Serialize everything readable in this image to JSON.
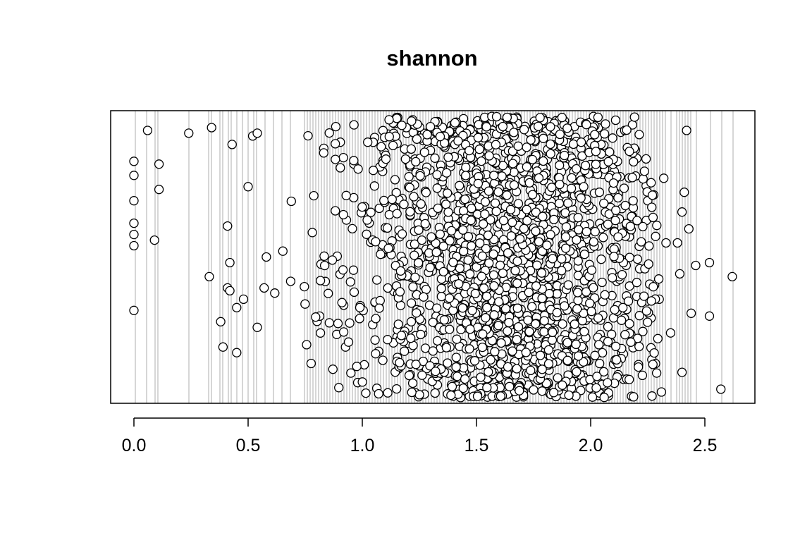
{
  "chart_data": {
    "type": "scatter",
    "title": "shannon",
    "xlabel": "",
    "ylabel": "",
    "xlim": [
      -0.1,
      2.72
    ],
    "x_ticks": [
      0.0,
      0.5,
      1.0,
      1.5,
      2.0,
      2.5
    ],
    "x_tick_labels": [
      "0.0",
      "0.5",
      "1.0",
      "1.5",
      "2.0",
      "2.5"
    ],
    "y_axis": "jittered (no scale shown)",
    "grid": "vertical lines at each observed x value",
    "colors": {
      "grid": "#c0c0c0",
      "point_fill": "#ffffff",
      "point_stroke": "#000000",
      "frame": "#000000"
    },
    "series": [
      {
        "note": "explicit outlying points (x, jitter position 0-1 from bottom)",
        "points": [
          [
            0.0,
            0.84
          ],
          [
            0.0,
            0.79
          ],
          [
            0.0,
            0.7
          ],
          [
            0.0,
            0.62
          ],
          [
            0.0,
            0.58
          ],
          [
            0.0,
            0.54
          ],
          [
            0.0,
            0.31
          ],
          [
            0.06,
            0.95
          ],
          [
            0.09,
            0.56
          ],
          [
            0.11,
            0.83
          ],
          [
            0.11,
            0.74
          ],
          [
            0.24,
            0.94
          ],
          [
            0.34,
            0.96
          ],
          [
            0.33,
            0.43
          ],
          [
            0.38,
            0.27
          ],
          [
            0.39,
            0.18
          ],
          [
            0.41,
            0.61
          ],
          [
            0.41,
            0.39
          ],
          [
            0.42,
            0.38
          ],
          [
            0.42,
            0.48
          ],
          [
            0.43,
            0.9
          ],
          [
            0.45,
            0.32
          ],
          [
            0.45,
            0.16
          ],
          [
            0.48,
            0.35
          ],
          [
            0.5,
            0.75
          ],
          [
            0.52,
            0.93
          ],
          [
            0.54,
            0.94
          ],
          [
            0.54,
            0.25
          ],
          [
            0.57,
            0.39
          ],
          [
            0.58,
            0.5
          ],
          [
            2.25,
            0.7
          ],
          [
            2.28,
            0.4
          ],
          [
            2.3,
            0.35
          ],
          [
            2.31,
            0.02
          ],
          [
            2.32,
            0.78
          ],
          [
            2.33,
            0.55
          ],
          [
            2.35,
            0.23
          ],
          [
            2.38,
            0.55
          ],
          [
            2.39,
            0.44
          ],
          [
            2.4,
            0.09
          ],
          [
            2.4,
            0.66
          ],
          [
            2.41,
            0.73
          ],
          [
            2.42,
            0.95
          ],
          [
            2.43,
            0.6
          ],
          [
            2.44,
            0.3
          ],
          [
            2.46,
            0.47
          ],
          [
            2.52,
            0.48
          ],
          [
            2.52,
            0.29
          ],
          [
            2.57,
            0.03
          ],
          [
            2.62,
            0.43
          ]
        ]
      }
    ],
    "bulk_distribution": {
      "n_points": 1850,
      "center": 1.62,
      "spread": 0.33,
      "range": [
        0.6,
        2.3
      ]
    }
  }
}
